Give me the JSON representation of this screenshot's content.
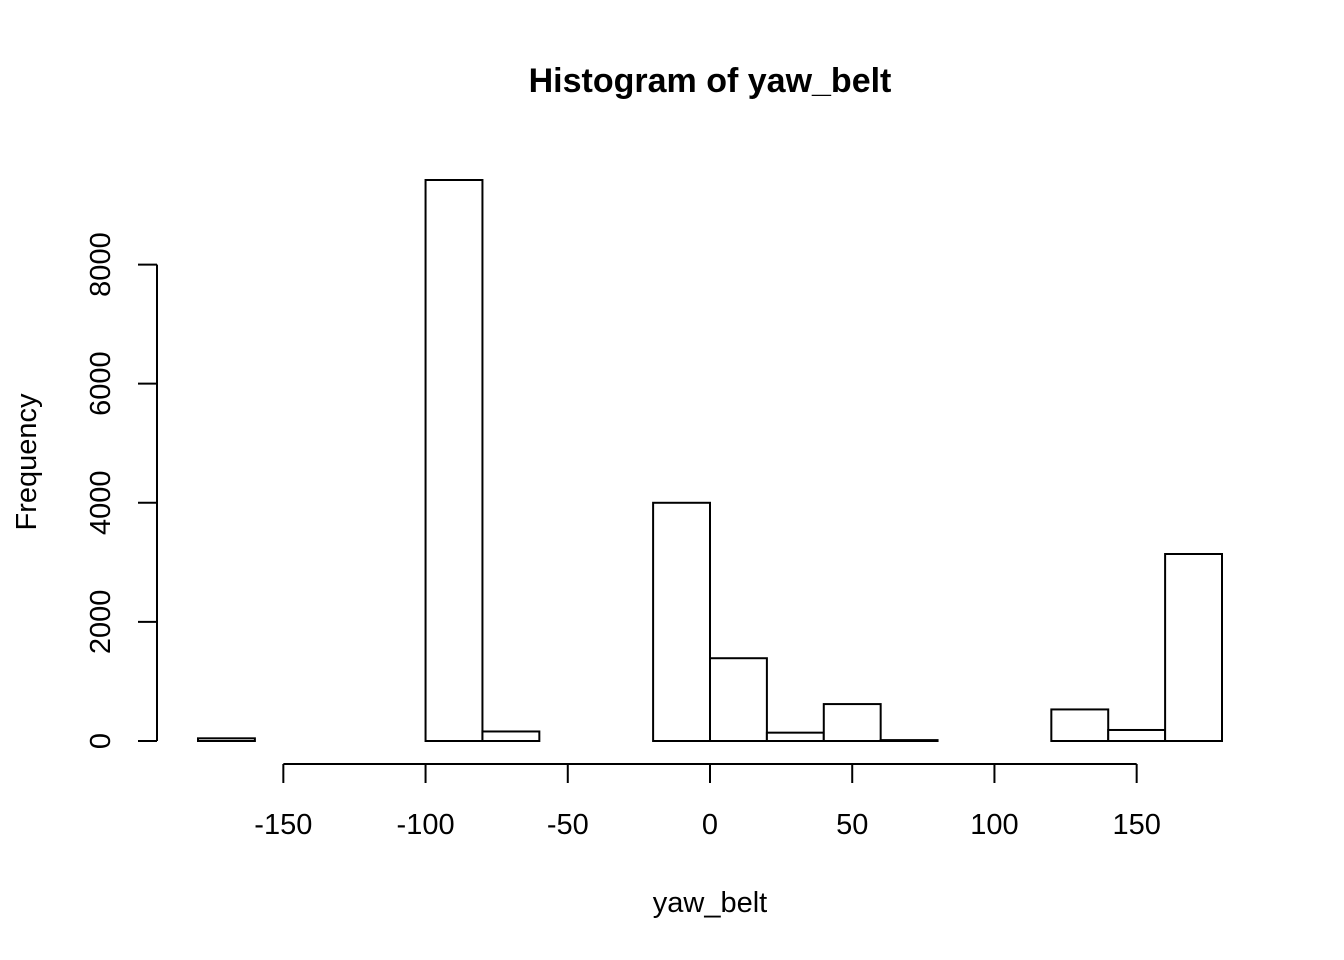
{
  "chart_data": {
    "type": "bar",
    "subtype": "histogram",
    "title": "Histogram of yaw_belt",
    "xlabel": "yaw_belt",
    "ylabel": "Frequency",
    "bin_edges": [
      -180,
      -160,
      -140,
      -120,
      -100,
      -80,
      -60,
      -40,
      -20,
      0,
      20,
      40,
      60,
      80,
      100,
      120,
      140,
      160,
      180
    ],
    "values": [
      45,
      0,
      0,
      0,
      9420,
      160,
      0,
      0,
      4000,
      1390,
      140,
      620,
      15,
      0,
      0,
      530,
      185,
      3140
    ],
    "xticks": [
      -150,
      -100,
      -50,
      0,
      50,
      100,
      150
    ],
    "yticks": [
      0,
      2000,
      4000,
      6000,
      8000
    ],
    "xlim": [
      -180,
      180
    ],
    "ylim": [
      0,
      9420
    ],
    "grid": false,
    "legend": "none"
  }
}
